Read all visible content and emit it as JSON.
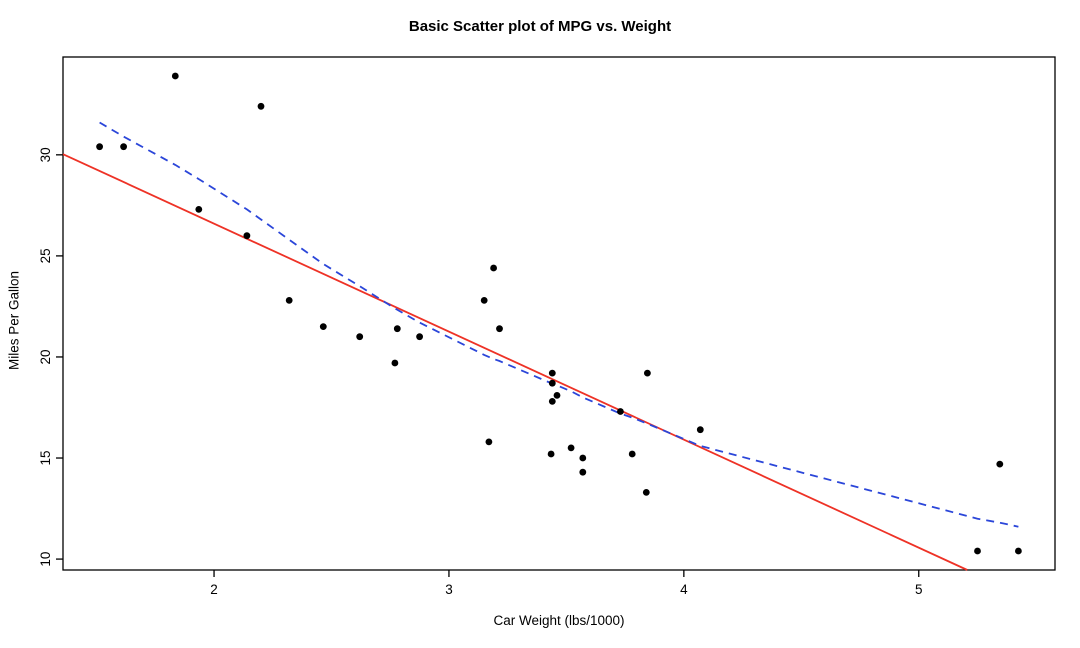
{
  "chart_data": {
    "type": "scatter",
    "title": "Basic Scatter plot of MPG vs. Weight",
    "xlabel": "Car Weight (lbs/1000)",
    "ylabel": "Miles Per Gallon",
    "xlim": [
      1.357,
      5.58
    ],
    "ylim": [
      9.46,
      34.84
    ],
    "x_ticks": [
      2,
      3,
      4,
      5
    ],
    "y_ticks": [
      10,
      15,
      20,
      25,
      30
    ],
    "grid": false,
    "legend": "none",
    "points": [
      [
        2.62,
        21.0
      ],
      [
        2.875,
        21.0
      ],
      [
        2.32,
        22.8
      ],
      [
        3.215,
        21.4
      ],
      [
        3.44,
        18.7
      ],
      [
        3.46,
        18.1
      ],
      [
        3.57,
        14.3
      ],
      [
        3.19,
        24.4
      ],
      [
        3.15,
        22.8
      ],
      [
        3.44,
        19.2
      ],
      [
        3.44,
        17.8
      ],
      [
        4.07,
        16.4
      ],
      [
        3.73,
        17.3
      ],
      [
        3.78,
        15.2
      ],
      [
        5.25,
        10.4
      ],
      [
        5.424,
        10.4
      ],
      [
        5.345,
        14.7
      ],
      [
        2.2,
        32.4
      ],
      [
        1.615,
        30.4
      ],
      [
        1.835,
        33.9
      ],
      [
        2.465,
        21.5
      ],
      [
        3.52,
        15.5
      ],
      [
        3.435,
        15.2
      ],
      [
        3.84,
        13.3
      ],
      [
        3.845,
        19.2
      ],
      [
        1.935,
        27.3
      ],
      [
        2.14,
        26.0
      ],
      [
        1.513,
        30.4
      ],
      [
        3.17,
        15.8
      ],
      [
        2.77,
        19.7
      ],
      [
        3.57,
        15.0
      ],
      [
        2.78,
        21.4
      ]
    ],
    "regression": {
      "intercept": 37.285,
      "slope": -5.344
    },
    "lowess": [
      [
        1.513,
        31.6
      ],
      [
        1.615,
        30.9
      ],
      [
        1.835,
        29.5
      ],
      [
        1.935,
        28.8
      ],
      [
        2.14,
        27.3
      ],
      [
        2.2,
        26.8
      ],
      [
        2.32,
        25.8
      ],
      [
        2.465,
        24.6
      ],
      [
        2.62,
        23.5
      ],
      [
        2.77,
        22.4
      ],
      [
        2.875,
        21.7
      ],
      [
        3.15,
        20.1
      ],
      [
        3.19,
        19.9
      ],
      [
        3.215,
        19.8
      ],
      [
        3.435,
        18.7
      ],
      [
        3.46,
        18.6
      ],
      [
        3.52,
        18.3
      ],
      [
        3.57,
        18.0
      ],
      [
        3.73,
        17.2
      ],
      [
        3.78,
        17.0
      ],
      [
        3.845,
        16.7
      ],
      [
        4.07,
        15.6
      ],
      [
        5.25,
        12.0
      ],
      [
        5.345,
        11.8
      ],
      [
        5.424,
        11.6
      ]
    ],
    "colors": {
      "points": "#000000",
      "regression_line": "#ee3226",
      "lowess_line": "#2b46d9",
      "axis": "#000000"
    }
  }
}
